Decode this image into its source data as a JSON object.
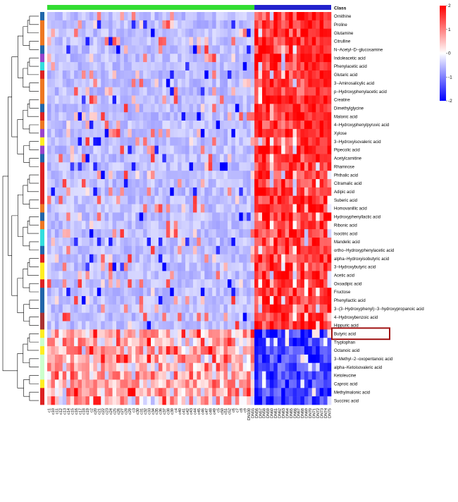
{
  "chart_data": {
    "type": "heatmap",
    "title": "",
    "class_label": "Class",
    "legend": {
      "range": [
        -2,
        2
      ],
      "ticks": [
        2,
        1,
        0,
        -1,
        -2
      ],
      "low_color": "#0000ff",
      "mid_color": "#ffffff",
      "high_color": "#ff0000"
    },
    "column_groups": [
      {
        "color": "#33dd33",
        "count": 54
      },
      {
        "color": "#2222cc",
        "count": 20
      }
    ],
    "columns": [
      "c1",
      "c10",
      "c11",
      "c12",
      "c13",
      "c14",
      "c15",
      "c16",
      "c17",
      "c18",
      "c19",
      "c2",
      "c20",
      "c21",
      "c22",
      "c23",
      "c24",
      "c25",
      "c26",
      "c27",
      "c28",
      "c29",
      "c3",
      "c30",
      "c31",
      "c32",
      "c33",
      "c34",
      "c35",
      "c36",
      "c37",
      "c38",
      "c39",
      "c4",
      "c40",
      "c41",
      "c42",
      "c43",
      "c44",
      "c45",
      "c46",
      "c47",
      "c48",
      "c49",
      "c5",
      "c50",
      "c51",
      "c52",
      "c6",
      "c7",
      "c8",
      "c9",
      "DN100",
      "DN55",
      "DN56",
      "DN57",
      "DN58",
      "DN59",
      "DN60",
      "DN61",
      "DN62",
      "DN63",
      "DN64",
      "DN65",
      "DN66",
      "DN67",
      "DN68",
      "DN69",
      "DN70",
      "DN71",
      "DN72",
      "DN73",
      "DN74",
      "DN75"
    ],
    "rows": [
      {
        "name": "Ornithine",
        "class_color": "#2266aa",
        "pattern": "up"
      },
      {
        "name": "Proline",
        "class_color": "#ee7722",
        "pattern": "up"
      },
      {
        "name": "Glutamine",
        "class_color": "#ee7722",
        "pattern": "up"
      },
      {
        "name": "Citrulline",
        "class_color": "#ee7722",
        "pattern": "up"
      },
      {
        "name": "N−Acetyl−D−glucosamine",
        "class_color": "#2266aa",
        "pattern": "up"
      },
      {
        "name": "Indoleacetic acid",
        "class_color": "#9944cc",
        "pattern": "up"
      },
      {
        "name": "Phenylacetic acid",
        "class_color": "#33dddd",
        "pattern": "up"
      },
      {
        "name": "Glutaric acid",
        "class_color": "#dd2222",
        "pattern": "up"
      },
      {
        "name": "3−Aminosalicylic acid",
        "class_color": "#ee7722",
        "pattern": "up"
      },
      {
        "name": "p−Hydroxyphenylacetic acid",
        "class_color": "#ee7722",
        "pattern": "up"
      },
      {
        "name": "Creatine",
        "class_color": "#ee7722",
        "pattern": "up"
      },
      {
        "name": "Dimethylglycine",
        "class_color": "#2266aa",
        "pattern": "up"
      },
      {
        "name": "Malonic acid",
        "class_color": "#dd2222",
        "pattern": "up"
      },
      {
        "name": "4−Hydroxyphenylpyruvic acid",
        "class_color": "#ee7722",
        "pattern": "up"
      },
      {
        "name": "Xylose",
        "class_color": "#9944cc",
        "pattern": "up"
      },
      {
        "name": "3−Hydroxyisovaleric acid",
        "class_color": "#ffee22",
        "pattern": "up"
      },
      {
        "name": "Pipecolic acid",
        "class_color": "#9944cc",
        "pattern": "up"
      },
      {
        "name": "Acetylcarnitine",
        "class_color": "#2266aa",
        "pattern": "up"
      },
      {
        "name": "Rhamnose",
        "class_color": "#dd2222",
        "pattern": "up"
      },
      {
        "name": "Phthalic acid",
        "class_color": "#dd2222",
        "pattern": "up"
      },
      {
        "name": "Citramalic acid",
        "class_color": "#dd2222",
        "pattern": "up"
      },
      {
        "name": "Adipic acid",
        "class_color": "#dd2222",
        "pattern": "up"
      },
      {
        "name": "Suberic acid",
        "class_color": "#dd2222",
        "pattern": "up"
      },
      {
        "name": "Homovanillic acid",
        "class_color": "#ee7722",
        "pattern": "up"
      },
      {
        "name": "Hydroxyphenyllactic acid",
        "class_color": "#2266aa",
        "pattern": "up"
      },
      {
        "name": "Ribonic acid",
        "class_color": "#ee7722",
        "pattern": "up"
      },
      {
        "name": "Isocitric acid",
        "class_color": "#33dddd",
        "pattern": "up"
      },
      {
        "name": "Mandelic acid",
        "class_color": "#33dddd",
        "pattern": "up"
      },
      {
        "name": "ortho−Hydroxyphenylacetic acid",
        "class_color": "#2266aa",
        "pattern": "up"
      },
      {
        "name": "alpha−Hydroxyisobutyric acid",
        "class_color": "#dd2222",
        "pattern": "up"
      },
      {
        "name": "3−Hydroxybutyric acid",
        "class_color": "#ffee22",
        "pattern": "up"
      },
      {
        "name": "Acetic acid",
        "class_color": "#ffee22",
        "pattern": "up"
      },
      {
        "name": "Oxoadipic acid",
        "class_color": "#dd2222",
        "pattern": "up"
      },
      {
        "name": "Fructose",
        "class_color": "#2266aa",
        "pattern": "up"
      },
      {
        "name": "Phenyllactic acid",
        "class_color": "#2266aa",
        "pattern": "up"
      },
      {
        "name": "3−(3−Hydroxyphenyl)−3−hydroxypropanoic acid",
        "class_color": "#2266aa",
        "pattern": "up"
      },
      {
        "name": "4−Hydroxybenzoic acid",
        "class_color": "#aa3333",
        "pattern": "up"
      },
      {
        "name": "Hippuric acid",
        "class_color": "#aa3333",
        "pattern": "up"
      },
      {
        "name": "Butyric acid",
        "class_color": "#ffee22",
        "pattern": "down",
        "highlighted": true
      },
      {
        "name": "Tryptophan",
        "class_color": "#ccffcc",
        "pattern": "down"
      },
      {
        "name": "Octanoic acid",
        "class_color": "#ffee22",
        "pattern": "down"
      },
      {
        "name": "3−Methyl−2−oxopentanoic acid",
        "class_color": "#ccffcc",
        "pattern": "down"
      },
      {
        "name": "alpha−Ketoisovaleric acid",
        "class_color": "#ccffcc",
        "pattern": "down"
      },
      {
        "name": "Ketoleucine",
        "class_color": "#ccffcc",
        "pattern": "down"
      },
      {
        "name": "Caproic acid",
        "class_color": "#ffee22",
        "pattern": "down"
      },
      {
        "name": "Methylmalonic acid",
        "class_color": "#dd2222",
        "pattern": "down"
      },
      {
        "name": "Succinic acid",
        "class_color": "#dd2222",
        "pattern": "down"
      }
    ]
  }
}
